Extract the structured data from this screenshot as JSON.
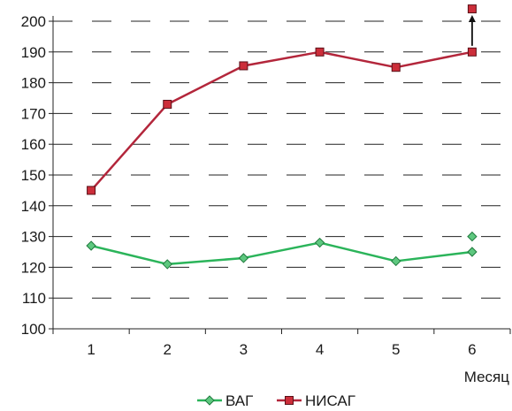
{
  "chart_data": {
    "type": "line",
    "title": "",
    "xlabel": "Месяц",
    "ylabel": "",
    "categories": [
      "1",
      "2",
      "3",
      "4",
      "5",
      "6"
    ],
    "ylim": [
      100,
      200
    ],
    "yticks": [
      100,
      110,
      120,
      130,
      140,
      150,
      160,
      170,
      180,
      190,
      200
    ],
    "grid": "horizontal-dashed",
    "legend_position": "bottom-center",
    "series": [
      {
        "name": "ВАГ",
        "values": [
          127,
          121,
          123,
          128,
          122,
          125
        ],
        "color": "#2bb45a",
        "marker": "diamond",
        "marker_color": "#5ec87f",
        "extra_point": {
          "x": "6",
          "y": 130
        }
      },
      {
        "name": "НИСАГ",
        "values": [
          145,
          173,
          185.5,
          190,
          185,
          190
        ],
        "color": "#b3263b",
        "marker": "square",
        "marker_color": "#cc2e3a",
        "extra_point": {
          "x": "6",
          "y": 204
        }
      }
    ],
    "annotations": [
      {
        "type": "arrow",
        "x": "6",
        "from": 192,
        "to": 202
      }
    ]
  }
}
